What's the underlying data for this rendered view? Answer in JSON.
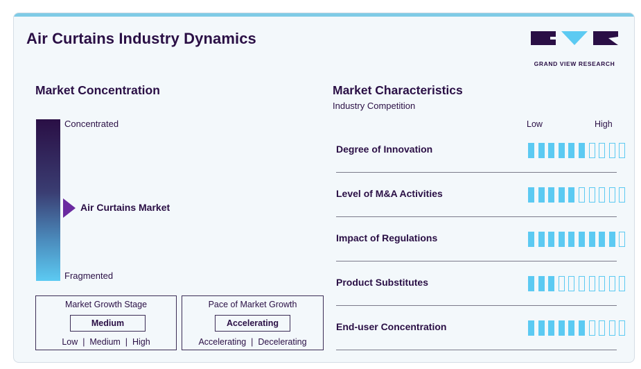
{
  "header": {
    "title": "Air Curtains Industry Dynamics",
    "logo_text": "GRAND VIEW RESEARCH"
  },
  "concentration": {
    "section_title": "Market Concentration",
    "top_label": "Concentrated",
    "bottom_label": "Fragmented",
    "marker_label": "Air Curtains Market"
  },
  "growth_stage": {
    "title": "Market Growth Stage",
    "value": "Medium",
    "options": "Low  |  Medium  |  High"
  },
  "growth_pace": {
    "title": "Pace of Market Growth",
    "value": "Accelerating",
    "options": "Accelerating  |  Decelerating"
  },
  "characteristics": {
    "section_title": "Market Characteristics",
    "subtitle": "Industry Competition",
    "low_label": "Low",
    "high_label": "High",
    "total_segments": 10,
    "rows": [
      {
        "label": "Degree of Innovation",
        "filled": 6
      },
      {
        "label": "Level of M&A Activities",
        "filled": 5
      },
      {
        "label": "Impact of Regulations",
        "filled": 9
      },
      {
        "label": "Product Substitutes",
        "filled": 3
      },
      {
        "label": "End-user Concentration",
        "filled": 6
      }
    ]
  },
  "colors": {
    "dark_purple": "#2a0f45",
    "accent_purple": "#6a2aa0",
    "rating_blue": "#5ccaf2"
  }
}
